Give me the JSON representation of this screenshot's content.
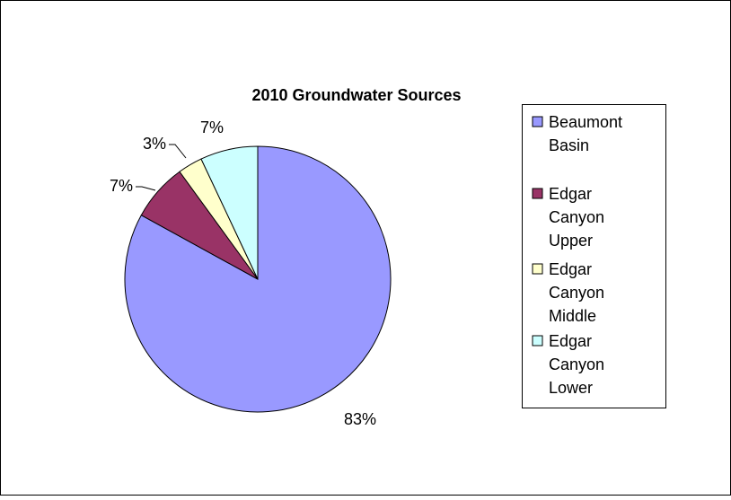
{
  "chart_data": {
    "type": "pie",
    "title": "2010 Groundwater Sources",
    "categories": [
      "Beaumont Basin",
      "Edgar Canyon Upper",
      "Edgar Canyon Middle",
      "Edgar Canyon Lower"
    ],
    "values": [
      83,
      7,
      3,
      7
    ],
    "data_labels": [
      "83%",
      "7%",
      "3%",
      "7%"
    ],
    "colors": [
      "#9999FF",
      "#993366",
      "#FFFFCC",
      "#CCFFFF"
    ],
    "legend": {
      "placement": "right",
      "entries": [
        {
          "lines": [
            "Beaumont",
            "Basin"
          ]
        },
        {
          "lines": [
            "Edgar",
            "Canyon",
            "Upper"
          ]
        },
        {
          "lines": [
            "Edgar",
            "Canyon",
            "Middle"
          ]
        },
        {
          "lines": [
            "Edgar",
            "Canyon",
            "Lower"
          ]
        }
      ]
    }
  }
}
